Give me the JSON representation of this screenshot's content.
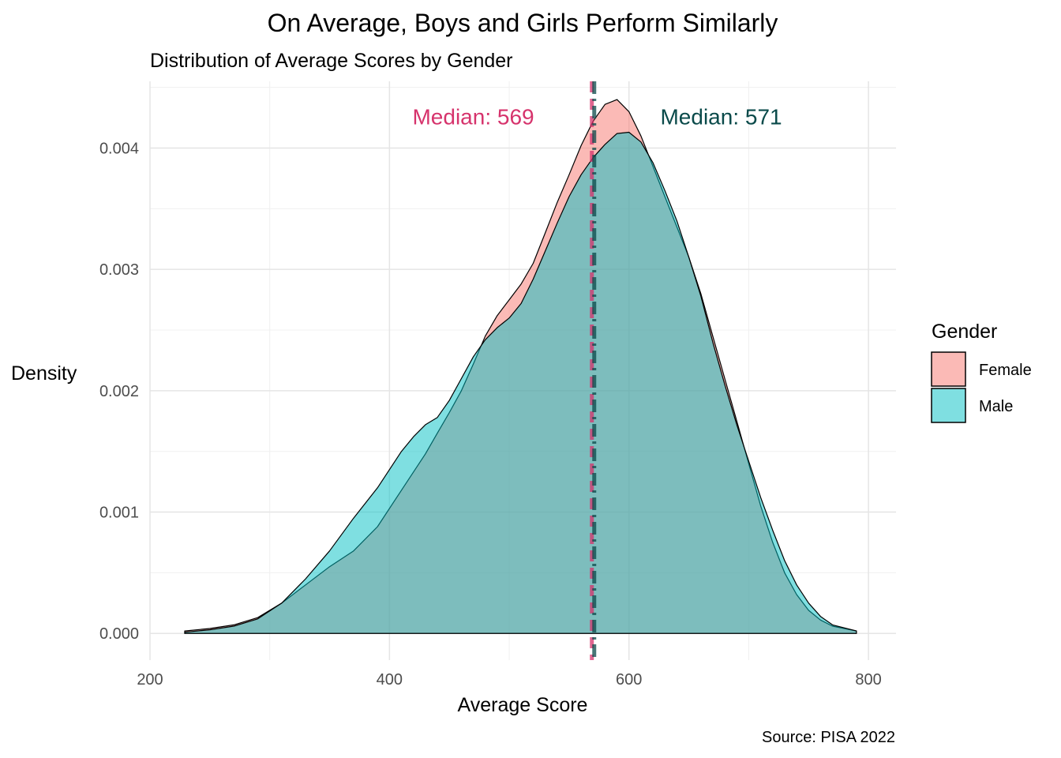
{
  "chart_data": {
    "type": "area",
    "title": "On Average, Boys and Girls Perform Similarly",
    "subtitle": "Distribution of Average Scores by Gender",
    "xlabel": "Average Score",
    "ylabel": "Density",
    "caption": "Source: PISA 2022",
    "xlim": [
      200,
      823
    ],
    "ylim": [
      -0.00022,
      0.00455
    ],
    "x_ticks": [
      200,
      400,
      600,
      800
    ],
    "x_tick_labels": [
      "200",
      "400",
      "600",
      "800"
    ],
    "y_ticks": [
      0,
      0.001,
      0.002,
      0.003,
      0.004
    ],
    "y_tick_labels": [
      "0.000",
      "0.001",
      "0.002",
      "0.003",
      "0.004"
    ],
    "grid": true,
    "legend": {
      "title": "Gender",
      "position": "right"
    },
    "series": [
      {
        "name": "Female",
        "fill": "#F8766D",
        "x": [
          229,
          250,
          270,
          290,
          310,
          330,
          350,
          370,
          390,
          410,
          430,
          440,
          450,
          460,
          470,
          480,
          490,
          500,
          510,
          520,
          530,
          540,
          550,
          560,
          570,
          580,
          590,
          600,
          610,
          620,
          630,
          640,
          650,
          660,
          670,
          680,
          690,
          700,
          710,
          720,
          730,
          740,
          750,
          760,
          770,
          790
        ],
        "y": [
          2e-05,
          4e-05,
          7e-05,
          0.00013,
          0.00025,
          0.0004,
          0.00055,
          0.00068,
          0.00088,
          0.00118,
          0.00148,
          0.00165,
          0.00182,
          0.002,
          0.00222,
          0.00245,
          0.00262,
          0.00275,
          0.00288,
          0.00305,
          0.0033,
          0.00355,
          0.00378,
          0.00402,
          0.00422,
          0.00436,
          0.0044,
          0.0043,
          0.0041,
          0.00385,
          0.0036,
          0.00335,
          0.0031,
          0.0028,
          0.00245,
          0.0021,
          0.00175,
          0.0014,
          0.00105,
          0.00075,
          0.0005,
          0.00032,
          0.00019,
          0.00011,
          6e-05,
          2e-05
        ]
      },
      {
        "name": "Male",
        "fill": "#00BFC4",
        "x": [
          229,
          250,
          270,
          290,
          310,
          330,
          350,
          370,
          390,
          410,
          420,
          430,
          440,
          450,
          460,
          470,
          480,
          490,
          500,
          510,
          520,
          530,
          540,
          550,
          560,
          570,
          580,
          590,
          600,
          610,
          620,
          630,
          640,
          650,
          660,
          670,
          680,
          690,
          700,
          710,
          720,
          730,
          740,
          750,
          760,
          770,
          790
        ],
        "y": [
          1e-05,
          3e-05,
          6e-05,
          0.00012,
          0.00025,
          0.00045,
          0.00068,
          0.00095,
          0.0012,
          0.0015,
          0.00162,
          0.00172,
          0.00178,
          0.00192,
          0.0021,
          0.00228,
          0.00242,
          0.00252,
          0.0026,
          0.00272,
          0.00292,
          0.00315,
          0.00338,
          0.0036,
          0.00378,
          0.00392,
          0.00403,
          0.00412,
          0.00413,
          0.00405,
          0.00388,
          0.00365,
          0.0034,
          0.0031,
          0.00278,
          0.0024,
          0.00205,
          0.00172,
          0.00142,
          0.00112,
          0.00085,
          0.0006,
          0.0004,
          0.00025,
          0.00014,
          7e-05,
          2e-05
        ]
      }
    ],
    "medians": [
      {
        "name": "Female",
        "value": 569,
        "label": "Median: 569",
        "label_x": 470,
        "label_y": 0.00426,
        "color": "#D6336C",
        "linestyle": "dashed"
      },
      {
        "name": "Male",
        "value": 571,
        "label": "Median: 571",
        "label_x": 677,
        "label_y": 0.00426,
        "color": "#0A4A4A",
        "linestyle": "dashdot"
      }
    ]
  }
}
